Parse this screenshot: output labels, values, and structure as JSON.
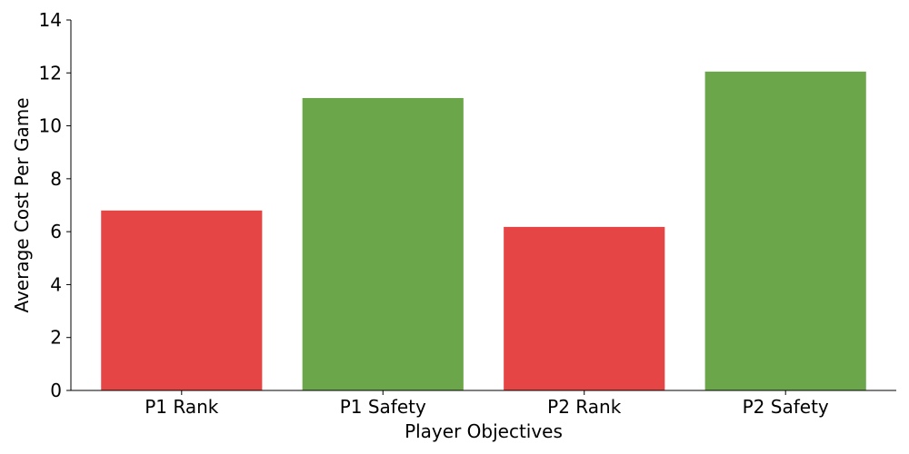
{
  "chart_data": {
    "type": "bar",
    "title": "",
    "xlabel": "Player Objectives",
    "ylabel": "Average Cost Per Game",
    "categories": [
      "P1 Rank",
      "P1 Safety",
      "P2 Rank",
      "P2 Safety"
    ],
    "values": [
      6.8,
      11.05,
      6.18,
      12.05
    ],
    "bar_colors": [
      "#e64545",
      "#6ca64a",
      "#e64545",
      "#6ca64a"
    ],
    "ylim": [
      0,
      14
    ],
    "yticks": [
      0,
      2,
      4,
      6,
      8,
      10,
      12,
      14
    ],
    "grid": false,
    "legend": "none"
  }
}
